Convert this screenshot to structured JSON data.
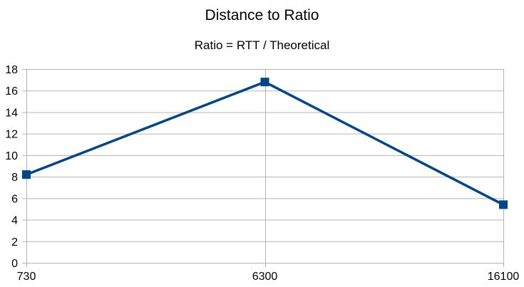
{
  "chart_data": {
    "type": "line",
    "title": "Distance to Ratio",
    "subtitle": "Ratio = RTT / Theoretical",
    "categories": [
      "730",
      "6300",
      "16100"
    ],
    "series": [
      {
        "values": [
          8.2,
          16.8,
          5.4
        ],
        "color": "#004586",
        "marker": "square"
      }
    ],
    "ylim": [
      0,
      18
    ],
    "yticks": [
      0,
      2,
      4,
      6,
      8,
      10,
      12,
      14,
      16,
      18
    ],
    "grid": true,
    "legend": "none",
    "colors": {
      "line": "#004586",
      "grid": "#b3b3b3",
      "axis": "#b3b3b3"
    }
  }
}
